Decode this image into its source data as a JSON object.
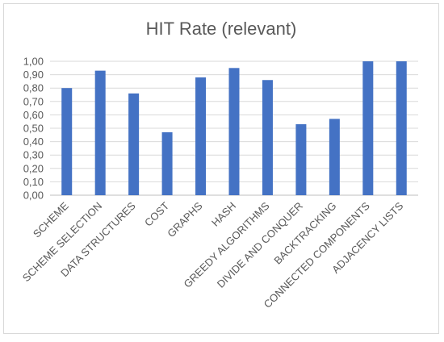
{
  "chart_data": {
    "type": "bar",
    "title": "HIT Rate (relevant)",
    "xlabel": "",
    "ylabel": "",
    "categories": [
      "SCHEME",
      "SCHEME SELECTION",
      "DATA STRUCTURES",
      "COST",
      "GRAPHS",
      "HASH",
      "GREEDY ALGORITHMS",
      "DIVIDE AND CONQUER",
      "BACKTRACKING",
      "CONNECTED COMPONENTS",
      "ADJACENCY LISTS"
    ],
    "values": [
      0.8,
      0.93,
      0.76,
      0.47,
      0.88,
      0.95,
      0.86,
      0.53,
      0.57,
      1.0,
      1.0
    ],
    "ylim": [
      0,
      1
    ],
    "yticks": [
      "0,00",
      "0,10",
      "0,20",
      "0,30",
      "0,40",
      "0,50",
      "0,60",
      "0,70",
      "0,80",
      "0,90",
      "1,00"
    ],
    "grid": true,
    "legend": "none",
    "colors": {
      "bar": "#4472c4",
      "grid": "#d9d9d9",
      "text": "#595959"
    }
  }
}
